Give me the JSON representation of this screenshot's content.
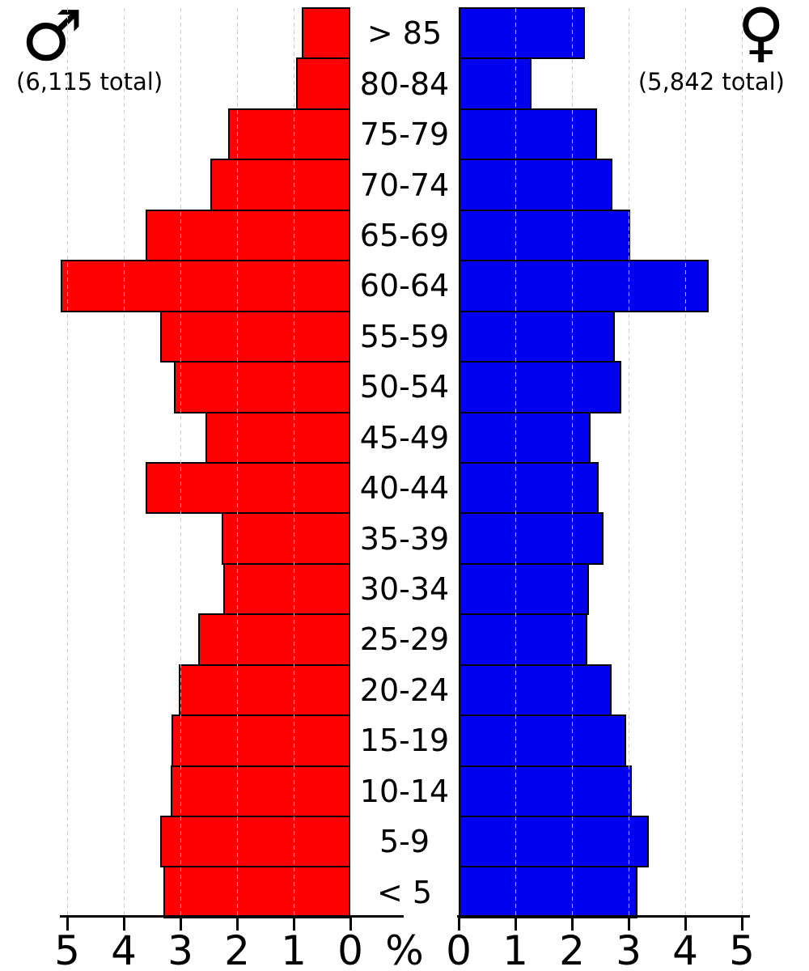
{
  "header": {
    "male_symbol": "♂",
    "male_total": "(6,115 total)",
    "female_symbol": "♀",
    "female_total": "(5,842 total)"
  },
  "axis": {
    "percent_label": "%",
    "left_tick_labels": [
      "5",
      "4",
      "3",
      "2",
      "1",
      "0"
    ],
    "right_tick_labels": [
      "0",
      "1",
      "2",
      "3",
      "4",
      "5"
    ]
  },
  "chart_data": {
    "type": "bar",
    "subtype": "population-pyramid",
    "title": "",
    "xlabel": "%",
    "xlim": [
      0,
      5
    ],
    "x_ticks": [
      0,
      1,
      2,
      3,
      4,
      5
    ],
    "grid": "vertical-dashed",
    "legend_position": "top-corners",
    "categories": [
      "> 85",
      "80-84",
      "75-79",
      "70-74",
      "65-69",
      "60-64",
      "55-59",
      "50-54",
      "45-49",
      "40-44",
      "35-39",
      "30-34",
      "25-29",
      "20-24",
      "15-19",
      "10-14",
      "5-9",
      "< 5"
    ],
    "series": [
      {
        "name": "Male",
        "side": "left",
        "color": "#ff0000",
        "total_shown": "6,115",
        "values": [
          0.86,
          0.96,
          2.16,
          2.47,
          3.61,
          5.11,
          3.36,
          3.11,
          2.56,
          3.61,
          2.27,
          2.25,
          2.69,
          3.03,
          3.16,
          3.17,
          3.36,
          3.3
        ]
      },
      {
        "name": "Female",
        "side": "right",
        "color": "#0000ee",
        "total_shown": "5,842",
        "values": [
          2.23,
          1.29,
          2.44,
          2.71,
          3.03,
          4.41,
          2.75,
          2.87,
          2.33,
          2.47,
          2.56,
          2.3,
          2.27,
          2.7,
          2.96,
          3.06,
          3.36,
          3.16
        ]
      }
    ]
  }
}
